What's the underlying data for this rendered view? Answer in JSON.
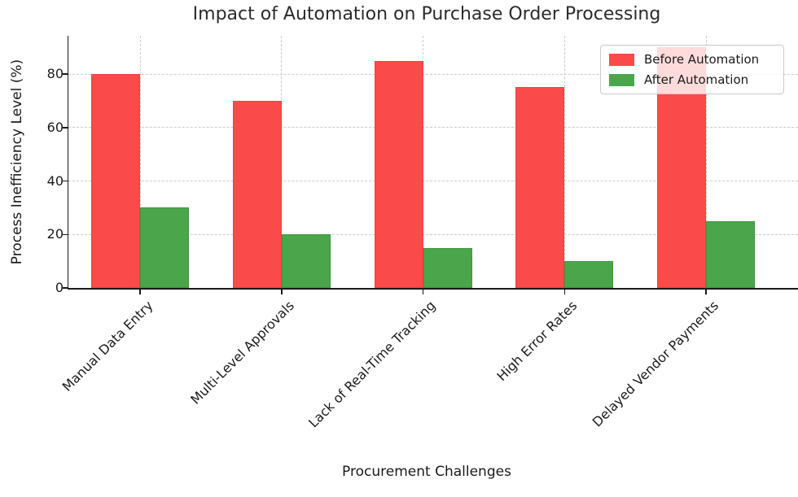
{
  "title": "Impact of Automation on Purchase Order Processing",
  "chart_data": {
    "type": "bar",
    "categories": [
      "Manual Data Entry",
      "Multi-Level Approvals",
      "Lack of Real-Time Tracking",
      "High Error Rates",
      "Delayed Vendor Payments"
    ],
    "series": [
      {
        "name": "Before Automation",
        "color": "#fa4a4a",
        "values": [
          80,
          70,
          85,
          75,
          90
        ]
      },
      {
        "name": "After Automation",
        "color": "#4ba64b",
        "values": [
          30,
          20,
          15,
          10,
          25
        ]
      }
    ],
    "title": "Impact of Automation on Purchase Order Processing",
    "xlabel": "Procurement Challenges",
    "ylabel": "Process Inefficiency Level (%)",
    "yticks": [
      0,
      20,
      40,
      60,
      80
    ],
    "ylim": [
      0,
      94.3
    ],
    "grid": true,
    "grid_style": "dashed",
    "legend_position": "upper right",
    "legend_labels": [
      "Before Automation",
      "After Automation"
    ]
  }
}
